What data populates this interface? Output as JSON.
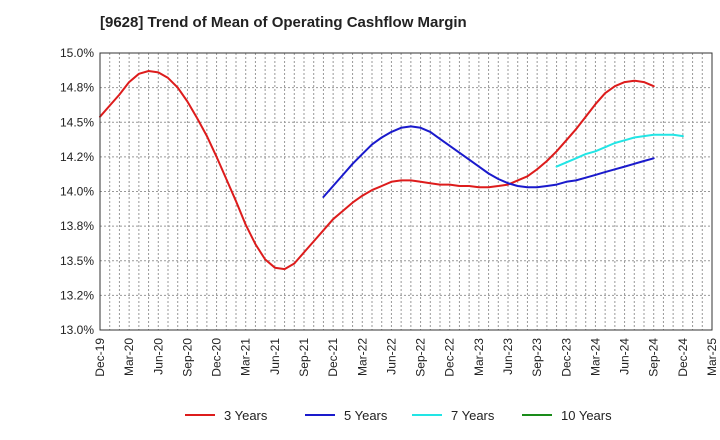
{
  "chart_data": {
    "type": "line",
    "title": "[9628]  Trend of Mean of Operating Cashflow Margin",
    "xlabel": "",
    "ylabel": "",
    "x_ticks": [
      "Dec-19",
      "Mar-20",
      "Jun-20",
      "Sep-20",
      "Dec-20",
      "Mar-21",
      "Jun-21",
      "Sep-21",
      "Dec-21",
      "Mar-22",
      "Jun-22",
      "Sep-22",
      "Dec-22",
      "Mar-23",
      "Jun-23",
      "Sep-23",
      "Dec-23",
      "Mar-24",
      "Jun-24",
      "Sep-24",
      "Dec-24",
      "Mar-25"
    ],
    "y_ticks": [
      "13.0%",
      "13.2%",
      "13.5%",
      "13.8%",
      "14.0%",
      "14.2%",
      "14.5%",
      "14.8%",
      "15.0%"
    ],
    "ylim": [
      13.0,
      15.0
    ],
    "grid": true,
    "legend_position": "bottom",
    "series": [
      {
        "name": "3 Years",
        "color": "#dd1c1c",
        "x": [
          "Dec-19",
          "Jan-20",
          "Feb-20",
          "Mar-20",
          "Apr-20",
          "May-20",
          "Jun-20",
          "Jul-20",
          "Aug-20",
          "Sep-20",
          "Oct-20",
          "Nov-20",
          "Dec-20",
          "Jan-21",
          "Feb-21",
          "Mar-21",
          "Apr-21",
          "May-21",
          "Jun-21",
          "Jul-21",
          "Aug-21",
          "Sep-21",
          "Oct-21",
          "Nov-21",
          "Dec-21",
          "Jan-22",
          "Feb-22",
          "Mar-22",
          "Apr-22",
          "May-22",
          "Jun-22",
          "Jul-22",
          "Aug-22",
          "Sep-22",
          "Oct-22",
          "Nov-22",
          "Dec-22",
          "Jan-23",
          "Feb-23",
          "Mar-23",
          "Apr-23",
          "May-23",
          "Jun-23",
          "Jul-23",
          "Aug-23",
          "Sep-23",
          "Oct-23",
          "Nov-23",
          "Dec-23",
          "Jan-24",
          "Feb-24",
          "Mar-24",
          "Apr-24",
          "May-24",
          "Jun-24",
          "Jul-24",
          "Aug-24",
          "Sep-24"
        ],
        "values": [
          14.54,
          14.62,
          14.7,
          14.79,
          14.85,
          14.87,
          14.86,
          14.82,
          14.75,
          14.65,
          14.53,
          14.4,
          14.25,
          14.09,
          13.93,
          13.76,
          13.62,
          13.51,
          13.45,
          13.44,
          13.48,
          13.56,
          13.64,
          13.72,
          13.8,
          13.86,
          13.92,
          13.97,
          14.01,
          14.04,
          14.07,
          14.08,
          14.08,
          14.07,
          14.06,
          14.05,
          14.05,
          14.04,
          14.04,
          14.03,
          14.03,
          14.04,
          14.05,
          14.08,
          14.11,
          14.16,
          14.22,
          14.29,
          14.37,
          14.45,
          14.54,
          14.63,
          14.71,
          14.76,
          14.79,
          14.8,
          14.79,
          14.76
        ]
      },
      {
        "name": "5 Years",
        "color": "#1a1acc",
        "x": [
          "Nov-21",
          "Dec-21",
          "Jan-22",
          "Feb-22",
          "Mar-22",
          "Apr-22",
          "May-22",
          "Jun-22",
          "Jul-22",
          "Aug-22",
          "Sep-22",
          "Oct-22",
          "Nov-22",
          "Dec-22",
          "Jan-23",
          "Feb-23",
          "Mar-23",
          "Apr-23",
          "May-23",
          "Jun-23",
          "Jul-23",
          "Aug-23",
          "Sep-23",
          "Oct-23",
          "Nov-23",
          "Dec-23",
          "Jan-24",
          "Feb-24",
          "Mar-24",
          "Apr-24",
          "May-24",
          "Jun-24",
          "Jul-24",
          "Aug-24",
          "Sep-24"
        ],
        "values": [
          13.96,
          14.04,
          14.12,
          14.2,
          14.27,
          14.34,
          14.39,
          14.43,
          14.46,
          14.47,
          14.46,
          14.43,
          14.38,
          14.33,
          14.28,
          14.23,
          14.18,
          14.13,
          14.09,
          14.06,
          14.04,
          14.03,
          14.03,
          14.04,
          14.05,
          14.07,
          14.08,
          14.1,
          14.12,
          14.14,
          14.16,
          14.18,
          14.2,
          14.22,
          14.24
        ]
      },
      {
        "name": "7 Years",
        "color": "#22e5e5",
        "x": [
          "Nov-23",
          "Dec-23",
          "Jan-24",
          "Feb-24",
          "Mar-24",
          "Apr-24",
          "May-24",
          "Jun-24",
          "Jul-24",
          "Aug-24",
          "Sep-24",
          "Oct-24",
          "Nov-24",
          "Dec-24"
        ],
        "values": [
          14.18,
          14.21,
          14.24,
          14.27,
          14.29,
          14.32,
          14.35,
          14.37,
          14.39,
          14.4,
          14.41,
          14.41,
          14.41,
          14.4
        ]
      },
      {
        "name": "10 Years",
        "color": "#1a8c1a",
        "x": [],
        "values": []
      }
    ]
  }
}
